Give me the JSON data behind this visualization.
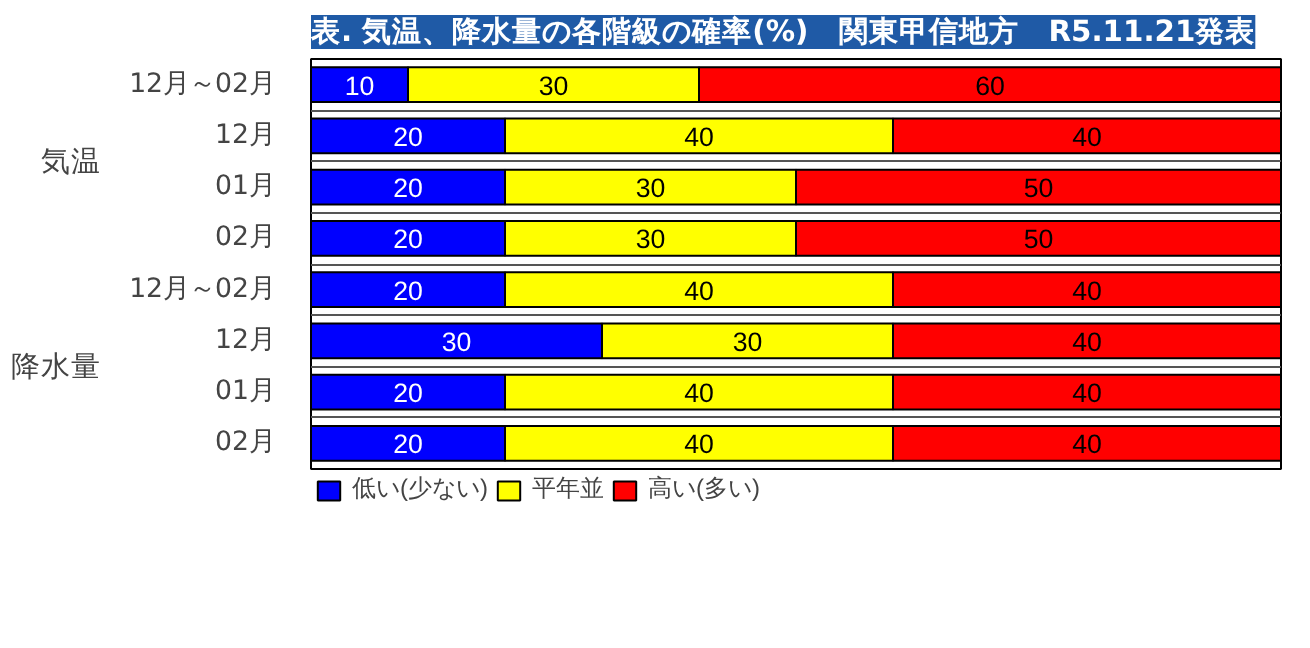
{
  "chart_data": {
    "type": "bar",
    "orientation": "horizontal",
    "stacked": true,
    "title": "表. 気温、降水量の各階級の確率(%)　関東甲信地方　R5.11.21発表",
    "categories": [
      "12月～02月",
      "12月",
      "01月",
      "02月",
      "12月～02月",
      "12月",
      "01月",
      "02月"
    ],
    "series": [
      {
        "name": "低い(少ない)",
        "color": "#0000ff",
        "values": [
          10,
          20,
          20,
          20,
          20,
          30,
          20,
          20
        ]
      },
      {
        "name": "平年並",
        "color": "#ffff00",
        "values": [
          30,
          40,
          30,
          30,
          40,
          30,
          40,
          40
        ]
      },
      {
        "name": "高い(多い)",
        "color": "#ff0000",
        "values": [
          60,
          40,
          50,
          50,
          40,
          40,
          40,
          40
        ]
      }
    ],
    "xlim": [
      0,
      100
    ],
    "data_labels": true,
    "legend": "bottom left",
    "grid": "y",
    "tick_labels": "y",
    "annotations": [
      "気温",
      "降水量"
    ]
  }
}
